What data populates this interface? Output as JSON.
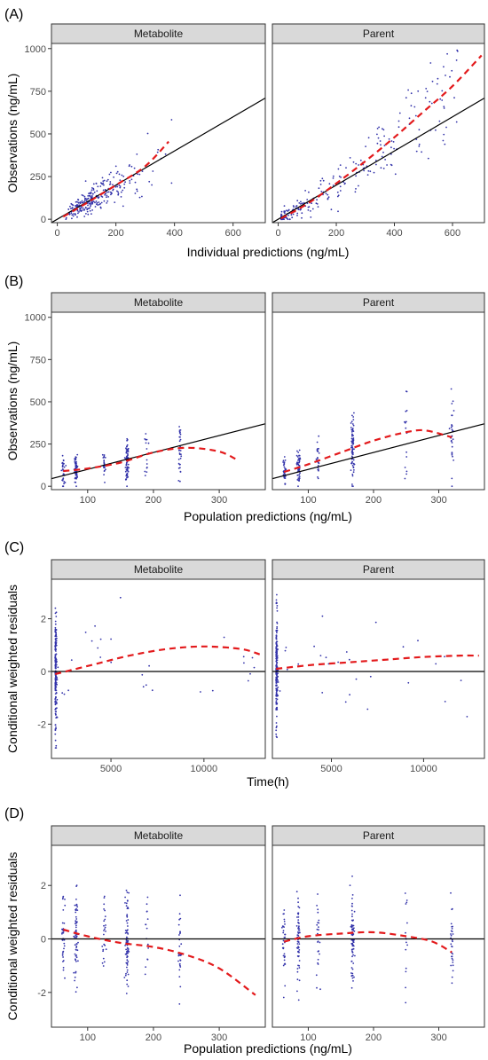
{
  "chart_data": [
    {
      "panel": "(A)",
      "type": "scatter",
      "facets": [
        "Metabolite",
        "Parent"
      ],
      "xlabel": "Individual predictions (ng/mL)",
      "ylabel": "Observations (ng/mL)",
      "xlim": [
        -20,
        710
      ],
      "ylim": [
        -20,
        1030
      ],
      "xticks": [
        0,
        200,
        400,
        600
      ],
      "yticks": [
        0,
        250,
        500,
        750,
        1000
      ],
      "reference_line": {
        "type": "identity"
      },
      "smooth": [
        [
          [
            20,
            15
          ],
          [
            100,
            95
          ],
          [
            200,
            200
          ],
          [
            300,
            310
          ],
          [
            380,
            455
          ]
        ],
        [
          [
            10,
            5
          ],
          [
            100,
            90
          ],
          [
            200,
            210
          ],
          [
            300,
            340
          ],
          [
            400,
            480
          ],
          [
            500,
            630
          ],
          [
            600,
            780
          ],
          [
            700,
            960
          ]
        ]
      ],
      "points_summary": [
        {
          "x_range": [
            15,
            390
          ],
          "y_range": [
            0,
            480
          ]
        },
        {
          "x_range": [
            5,
            700
          ],
          "y_range": [
            0,
            980
          ]
        }
      ]
    },
    {
      "panel": "(B)",
      "type": "scatter",
      "facets": [
        "Metabolite",
        "Parent"
      ],
      "xlabel": "Population predictions (ng/mL)",
      "ylabel": "Observations (ng/mL)",
      "xlim": [
        45,
        370
      ],
      "ylim": [
        -20,
        1030
      ],
      "xticks": [
        100,
        200,
        300
      ],
      "yticks": [
        0,
        250,
        500,
        750,
        1000
      ],
      "reference_line": {
        "type": "identity"
      },
      "x_levels": [
        [
          63,
          82,
          125,
          160,
          190,
          240
        ],
        [
          63,
          85,
          115,
          168,
          250,
          320
        ]
      ],
      "smooth": [
        [
          [
            63,
            90
          ],
          [
            100,
            105
          ],
          [
            150,
            140
          ],
          [
            200,
            200
          ],
          [
            250,
            228
          ],
          [
            300,
            205
          ],
          [
            330,
            150
          ]
        ],
        [
          [
            63,
            85
          ],
          [
            100,
            130
          ],
          [
            150,
            200
          ],
          [
            200,
            270
          ],
          [
            250,
            320
          ],
          [
            280,
            330
          ],
          [
            320,
            290
          ]
        ]
      ]
    },
    {
      "panel": "(C)",
      "type": "scatter",
      "facets": [
        "Metabolite",
        "Parent"
      ],
      "xlabel": "Time(h)",
      "ylabel": "Conditional weighted residuals",
      "xlim": [
        1800,
        13300
      ],
      "ylim": [
        -3.3,
        3.5
      ],
      "xticks": [
        5000,
        10000
      ],
      "yticks": [
        -2,
        0,
        2
      ],
      "reference_line": {
        "type": "zero"
      },
      "smooth": [
        [
          [
            2000,
            -0.1
          ],
          [
            4000,
            0.25
          ],
          [
            6000,
            0.6
          ],
          [
            8000,
            0.85
          ],
          [
            10000,
            0.95
          ],
          [
            12000,
            0.85
          ],
          [
            13000,
            0.65
          ]
        ],
        [
          [
            2000,
            0.1
          ],
          [
            4000,
            0.25
          ],
          [
            6000,
            0.35
          ],
          [
            8000,
            0.45
          ],
          [
            10000,
            0.55
          ],
          [
            12000,
            0.6
          ],
          [
            13000,
            0.6
          ]
        ]
      ]
    },
    {
      "panel": "(D)",
      "type": "scatter",
      "facets": [
        "Metabolite",
        "Parent"
      ],
      "xlabel": "Population predictions (ng/mL)",
      "ylabel": "Conditional weighted residuals",
      "xlim": [
        45,
        370
      ],
      "ylim": [
        -3.3,
        3.5
      ],
      "xticks": [
        100,
        200,
        300
      ],
      "yticks": [
        -2,
        0,
        2
      ],
      "reference_line": {
        "type": "zero"
      },
      "x_levels": [
        [
          63,
          82,
          125,
          160,
          190,
          240
        ],
        [
          63,
          85,
          115,
          168,
          250,
          320
        ]
      ],
      "smooth": [
        [
          [
            63,
            0.35
          ],
          [
            100,
            0.1
          ],
          [
            150,
            -0.15
          ],
          [
            200,
            -0.3
          ],
          [
            250,
            -0.6
          ],
          [
            300,
            -1.1
          ],
          [
            355,
            -2.1
          ]
        ],
        [
          [
            63,
            -0.1
          ],
          [
            100,
            0.1
          ],
          [
            150,
            0.2
          ],
          [
            200,
            0.25
          ],
          [
            250,
            0.1
          ],
          [
            290,
            -0.1
          ],
          [
            320,
            -0.5
          ]
        ]
      ]
    }
  ],
  "colors": {
    "points": "#3333aa",
    "smooth": "#e31a1c",
    "reference": "#000000",
    "strip": "#d9d9d9",
    "panel_border": "#333333"
  }
}
